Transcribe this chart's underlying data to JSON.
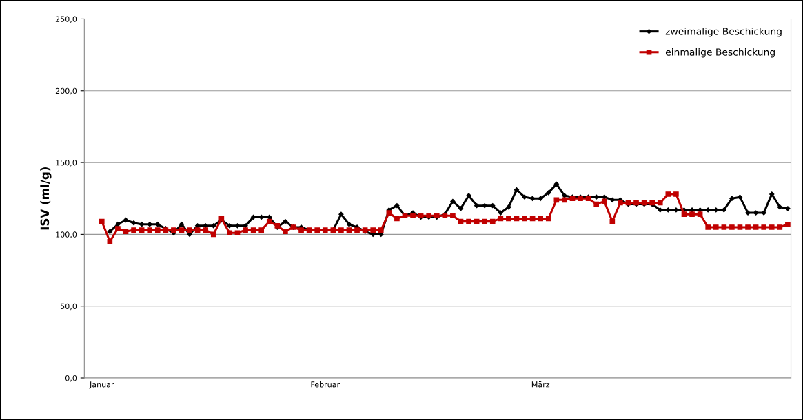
{
  "chart_data": {
    "type": "line",
    "ylabel": "ISV (ml/g)",
    "categories": [
      "Januar",
      null,
      null,
      null,
      null,
      null,
      null,
      null,
      null,
      null,
      null,
      null,
      null,
      null,
      null,
      null,
      null,
      null,
      null,
      null,
      null,
      null,
      null,
      null,
      null,
      null,
      null,
      null,
      "Februar",
      null,
      null,
      null,
      null,
      null,
      null,
      null,
      null,
      null,
      null,
      null,
      null,
      null,
      null,
      null,
      null,
      null,
      null,
      null,
      null,
      null,
      null,
      null,
      null,
      null,
      null,
      "März",
      null,
      null,
      null,
      null,
      null,
      null,
      null,
      null,
      null,
      null,
      null,
      null,
      null,
      null,
      null,
      null,
      null,
      null,
      null,
      null,
      null,
      null,
      null,
      null,
      null,
      null,
      null,
      null,
      null,
      null,
      null
    ],
    "series": [
      {
        "name": "zweimalige Beschickung",
        "color": "#000000",
        "marker": "diamond",
        "values": [
          null,
          102,
          107,
          110,
          108,
          107,
          107,
          107,
          104,
          101,
          107,
          100,
          106,
          106,
          106,
          110,
          106,
          106,
          106,
          112,
          112,
          112,
          105,
          109,
          105,
          105,
          103,
          null,
          null,
          103,
          114,
          107,
          105,
          102,
          100,
          100,
          117,
          120,
          113,
          115,
          112,
          112,
          112,
          114,
          123,
          118,
          127,
          120,
          120,
          120,
          115,
          119,
          131,
          126,
          125,
          125,
          129,
          135,
          127,
          126,
          126,
          126,
          126,
          126,
          124,
          124,
          121,
          121,
          121,
          121,
          117,
          117,
          117,
          117,
          117,
          117,
          117,
          117,
          117,
          125,
          126,
          115,
          115,
          115,
          128,
          119,
          118
        ]
      },
      {
        "name": "einmalige Beschickung",
        "color": "#c00000",
        "marker": "square",
        "values": [
          109,
          95,
          104,
          102,
          103,
          103,
          103,
          103,
          103,
          103,
          103,
          103,
          103,
          103,
          100,
          111,
          101,
          101,
          103,
          103,
          103,
          109,
          106,
          102,
          105,
          103,
          103,
          103,
          103,
          103,
          103,
          103,
          103,
          103,
          103,
          103,
          115,
          111,
          113,
          113,
          113,
          113,
          113,
          113,
          113,
          109,
          109,
          109,
          109,
          109,
          111,
          111,
          111,
          111,
          111,
          111,
          111,
          124,
          124,
          125,
          125,
          125,
          121,
          123,
          109,
          122,
          122,
          122,
          122,
          122,
          122,
          128,
          128,
          114,
          114,
          114,
          105,
          105,
          105,
          105,
          105,
          105,
          105,
          105,
          105,
          105,
          107
        ]
      }
    ],
    "ylim": [
      0,
      250
    ],
    "yticks": [
      {
        "value": 0,
        "label": "0,0"
      },
      {
        "value": 50,
        "label": "50,0"
      },
      {
        "value": 100,
        "label": "100,0"
      },
      {
        "value": 150,
        "label": "150,0"
      },
      {
        "value": 200,
        "label": "200,0"
      },
      {
        "value": 250,
        "label": "250,0"
      }
    ],
    "grid": "y",
    "legend": "top right",
    "line_style": "solid"
  }
}
